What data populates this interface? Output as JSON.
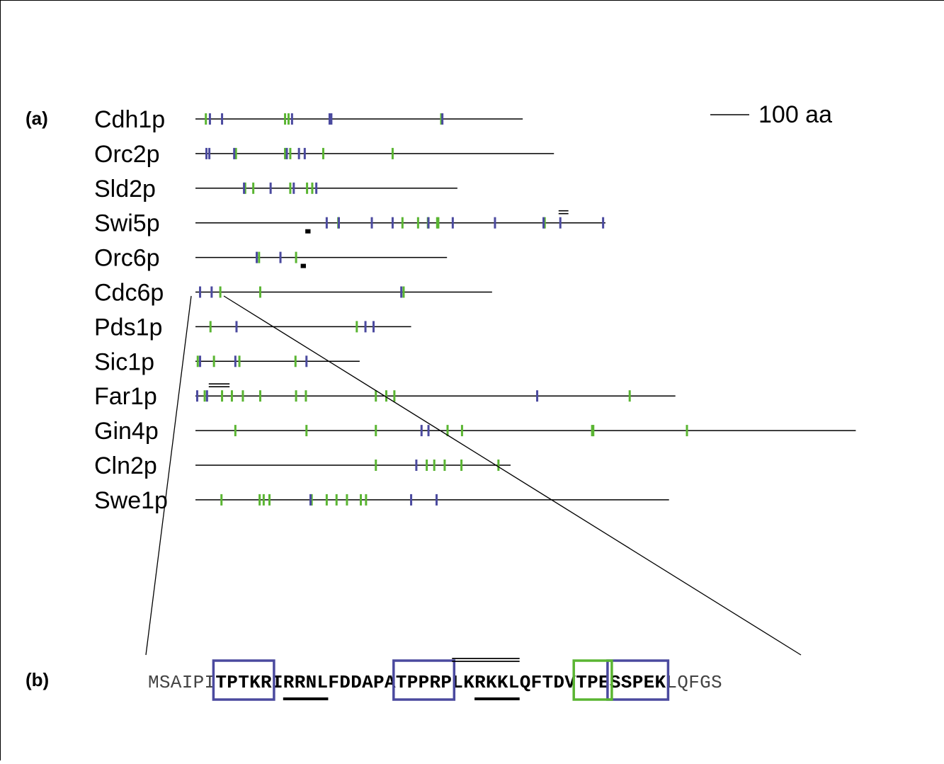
{
  "panel_a_label": "(a)",
  "panel_b_label": "(b)",
  "scale_label": "100 aa",
  "colors": {
    "cdk_site": "#4b4a9f",
    "green_site": "#5ab532",
    "line": "#000000"
  },
  "proteins": [
    {
      "name": "Cdh1p",
      "length_aa": 566,
      "blue": [
        25,
        46,
        167,
        232,
        235,
        427
      ],
      "green": [
        18,
        155,
        161,
        425
      ],
      "double_bar": null,
      "black_box": null
    },
    {
      "name": "Orc2p",
      "length_aa": 620,
      "blue": [
        19,
        24,
        67,
        158,
        179,
        189
      ],
      "green": [
        70,
        155,
        164,
        221,
        341
      ],
      "double_bar": null,
      "black_box": null
    },
    {
      "name": "Sld2p",
      "length_aa": 453,
      "blue": [
        84,
        130,
        170,
        209
      ],
      "green": [
        86,
        100,
        164,
        193,
        202
      ],
      "double_bar": null,
      "black_box": null
    },
    {
      "name": "Swi5p",
      "length_aa": 709,
      "blue": [
        227,
        248,
        305,
        341,
        403,
        445,
        518,
        602,
        631,
        705
      ],
      "green": [
        247,
        358,
        385,
        402,
        420,
        418,
        604
      ],
      "double_bar": [
        628,
        645
      ],
      "black_box": [
        190,
        199
      ]
    },
    {
      "name": "Orc6p",
      "length_aa": 435,
      "blue": [
        106,
        147
      ],
      "green": [
        110,
        174
      ],
      "double_bar": null,
      "black_box": [
        182,
        191
      ]
    },
    {
      "name": "Cdc6p",
      "length_aa": 513,
      "blue": [
        8,
        28,
        356
      ],
      "green": [
        43,
        112,
        360
      ],
      "double_bar": null,
      "black_box": null
    },
    {
      "name": "Pds1p",
      "length_aa": 373,
      "blue": [
        71,
        294,
        308
      ],
      "green": [
        26,
        279
      ],
      "double_bar": null,
      "black_box": null
    },
    {
      "name": "Sic1p",
      "length_aa": 284,
      "blue": [
        8,
        69,
        192
      ],
      "green": [
        4,
        32,
        76,
        173
      ],
      "double_bar": null,
      "black_box": null
    },
    {
      "name": "Far1p",
      "length_aa": 830,
      "blue": [
        3,
        20,
        591
      ],
      "green": [
        16,
        46,
        63,
        82,
        112,
        174,
        191,
        312,
        330,
        344,
        751
      ],
      "double_bar": [
        23,
        59
      ],
      "black_box": null
    },
    {
      "name": "Gin4p",
      "length_aa": 1142,
      "blue": [
        391,
        403
      ],
      "green": [
        69,
        192,
        312,
        436,
        461,
        686,
        688,
        850
      ],
      "double_bar": null,
      "black_box": null
    },
    {
      "name": "Cln2p",
      "length_aa": 545,
      "blue": [
        382
      ],
      "green": [
        312,
        400,
        413,
        431,
        460,
        524
      ],
      "double_bar": null,
      "black_box": null
    },
    {
      "name": "Swe1p",
      "length_aa": 819,
      "blue": [
        199,
        373,
        417
      ],
      "green": [
        45,
        111,
        118,
        128,
        201,
        227,
        244,
        262,
        286,
        295
      ],
      "double_bar": null,
      "black_box": null
    }
  ],
  "sequence": {
    "plain_prefix": "MSAIPI",
    "bold_core": "TPTKRIRRNLFDDAPATPPRPLKRKKLQFTDVTPESSPEK",
    "plain_suffix": "LQFGS",
    "blue_boxes": [
      "TPTKR",
      "TPPRP",
      "SSPEK"
    ],
    "green_boxes": [
      "TPE"
    ],
    "underlines": [
      "RRNL",
      "RKKL"
    ],
    "overlines": [
      "LKRKKL"
    ]
  }
}
